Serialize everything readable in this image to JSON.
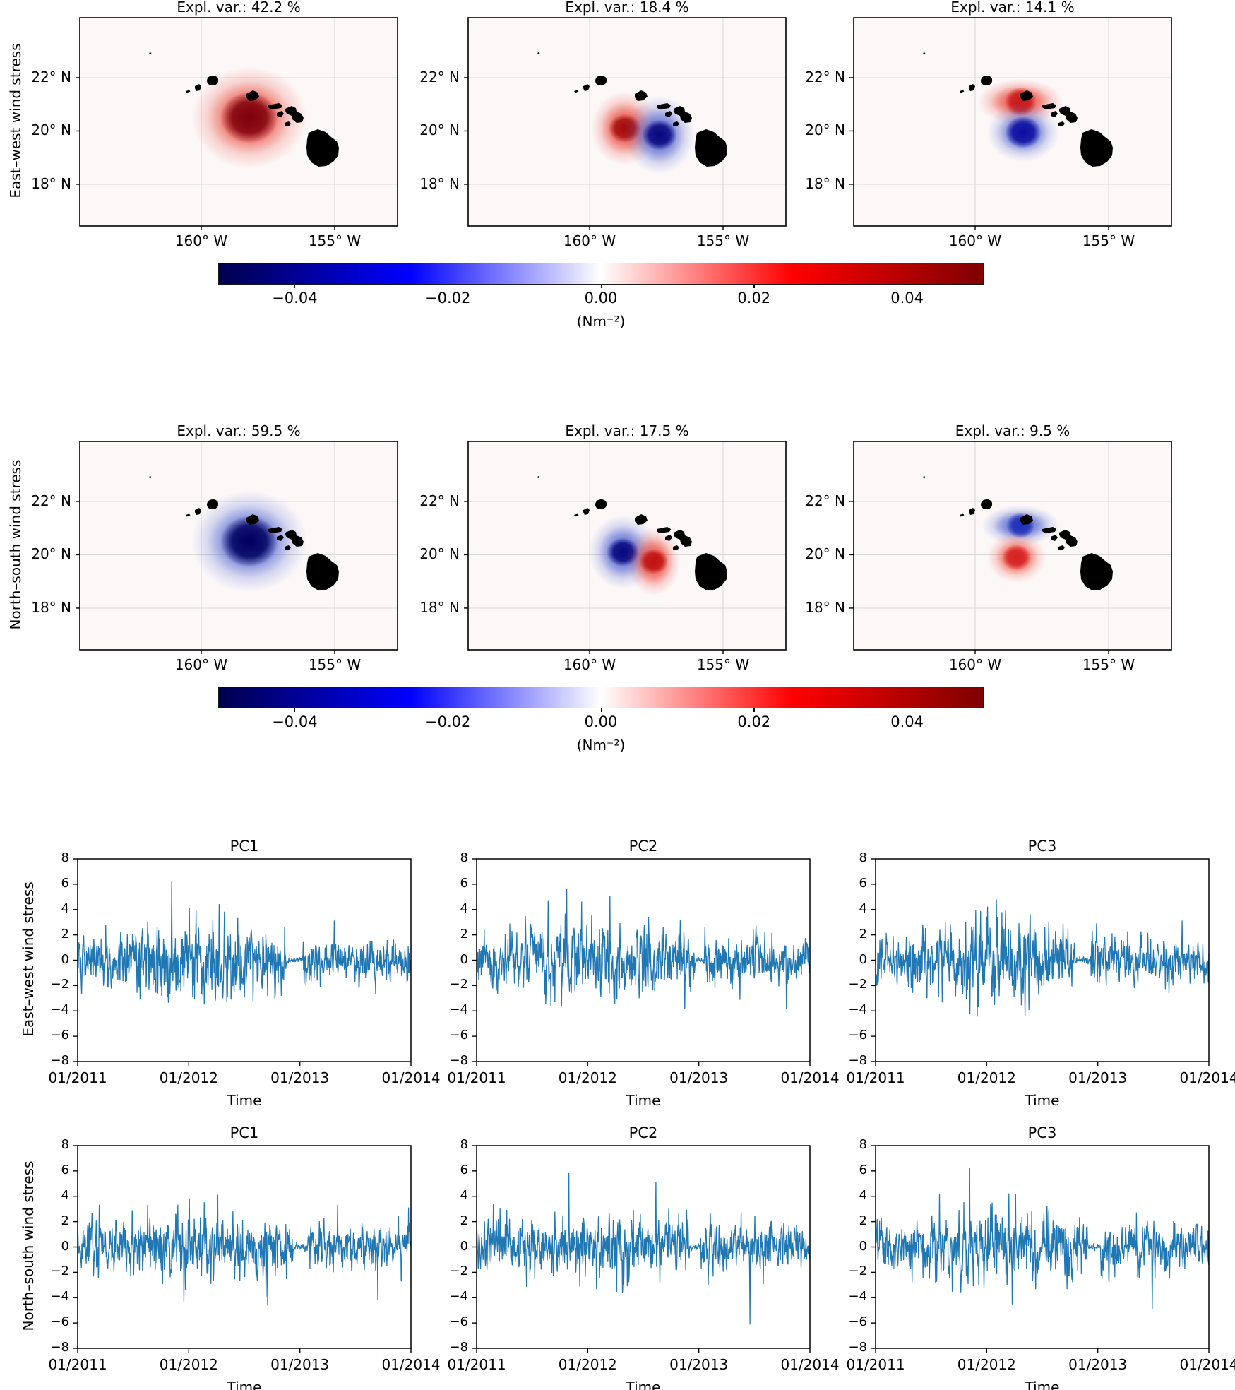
{
  "figure": {
    "row_sections": [
      {
        "label": "East–west wind stress"
      },
      {
        "label": "North–south wind stress"
      },
      {
        "label": "East–west wind stress"
      },
      {
        "label": "North–south wind stress"
      }
    ],
    "colorbar": {
      "tick_labels": [
        "−0.04",
        "−0.02",
        "0.00",
        "0.02",
        "0.04"
      ],
      "tick_values": [
        -0.04,
        -0.02,
        0.0,
        0.02,
        0.04
      ],
      "unit": "(Nm⁻²)",
      "cmap": "seismic",
      "vmin": -0.05,
      "vmax": 0.05,
      "gradient": [
        "#00004d",
        "#0000ff",
        "#ffffff",
        "#ff0000",
        "#800000"
      ]
    }
  },
  "chart_data": {
    "maps": {
      "type": "heatmap",
      "region": "Hawaiian Islands",
      "lon_range": [
        -164.55,
        -152.65
      ],
      "lat_range": [
        16.5,
        24.25
      ],
      "lon_ticks": [
        {
          "label": "160° W",
          "lon": -160
        },
        {
          "label": "155° W",
          "lon": -155
        }
      ],
      "lat_ticks": [
        {
          "label": "22° N",
          "lat": 22
        },
        {
          "label": "20° N",
          "lat": 20
        },
        {
          "label": "18° N",
          "lat": 18
        }
      ],
      "panels": [
        {
          "row_label": "East–west wind stress",
          "title": "Expl. var.: 42.2 %",
          "expl_var_pct": 42.2,
          "blobs": [
            {
              "sign": "positive",
              "lon": -158.2,
              "lat": 20.5,
              "rx_deg": 2.17,
              "ry_deg": 1.91,
              "core_deg": 0.8,
              "outer": "#e8392b",
              "core": "#7e000c"
            }
          ]
        },
        {
          "row_label": "East–west wind stress",
          "title": "Expl. var.: 18.4 %",
          "expl_var_pct": 18.4,
          "blobs": [
            {
              "sign": "positive",
              "lon": -158.68,
              "lat": 20.1,
              "rx_deg": 1.27,
              "ry_deg": 1.38,
              "core_deg": 0.45,
              "outer": "#e8392b",
              "core": "#a50d0d"
            },
            {
              "sign": "negative",
              "lon": -157.38,
              "lat": 19.85,
              "rx_deg": 1.32,
              "ry_deg": 1.46,
              "core_deg": 0.48,
              "outer": "#4055cc",
              "core": "#07077e"
            }
          ]
        },
        {
          "row_label": "East–west wind stress",
          "title": "Expl. var.: 14.1 %",
          "expl_var_pct": 14.1,
          "blobs": [
            {
              "sign": "positive",
              "lon": -158.3,
              "lat": 21.1,
              "rx_deg": 1.6,
              "ry_deg": 0.85,
              "core_deg": 0.45,
              "outer": "#e8392b",
              "core": "#c81a1a"
            },
            {
              "sign": "negative",
              "lon": -158.2,
              "lat": 19.95,
              "rx_deg": 1.35,
              "ry_deg": 1.1,
              "core_deg": 0.5,
              "outer": "#4055cc",
              "core": "#0d0da0"
            }
          ]
        },
        {
          "row_label": "North–south wind stress",
          "title": "Expl. var.: 59.5 %",
          "expl_var_pct": 59.5,
          "blobs": [
            {
              "sign": "negative",
              "lon": -158.2,
              "lat": 20.5,
              "rx_deg": 2.17,
              "ry_deg": 1.91,
              "core_deg": 0.8,
              "outer": "#4055cc",
              "core": "#00005e"
            }
          ]
        },
        {
          "row_label": "North–south wind stress",
          "title": "Expl. var.: 17.5 %",
          "expl_var_pct": 17.5,
          "blobs": [
            {
              "sign": "negative",
              "lon": -158.75,
              "lat": 20.1,
              "rx_deg": 1.27,
              "ry_deg": 1.38,
              "core_deg": 0.45,
              "outer": "#4055cc",
              "core": "#07077e"
            },
            {
              "sign": "positive",
              "lon": -157.6,
              "lat": 19.75,
              "rx_deg": 1.0,
              "ry_deg": 1.27,
              "core_deg": 0.4,
              "outer": "#e8392b",
              "core": "#c01212"
            }
          ]
        },
        {
          "row_label": "North–south wind stress",
          "title": "Expl. var.: 9.5 %",
          "expl_var_pct": 9.5,
          "blobs": [
            {
              "sign": "negative",
              "lon": -158.3,
              "lat": 21.1,
              "rx_deg": 1.45,
              "ry_deg": 0.75,
              "core_deg": 0.4,
              "outer": "#4055cc",
              "core": "#2030b8"
            },
            {
              "sign": "positive",
              "lon": -158.45,
              "lat": 19.9,
              "rx_deg": 1.1,
              "ry_deg": 0.95,
              "core_deg": 0.4,
              "outer": "#ee4433",
              "core": "#d42222"
            }
          ]
        }
      ]
    },
    "timeseries": {
      "type": "line",
      "line_color": "#1f77b4",
      "ylim": [
        -8,
        8
      ],
      "yticks": [
        -8,
        -6,
        -4,
        -2,
        0,
        2,
        4,
        6,
        8
      ],
      "xtick_labels": [
        "01/2011",
        "01/2012",
        "01/2013",
        "01/2014"
      ],
      "xlabel": "Time",
      "n_points": 1096,
      "panels": [
        {
          "row_label": "East–west wind stress",
          "title": "PC1",
          "seed": 101,
          "env": {
            "base": 0.62,
            "bump": 0.55,
            "center": 0.36,
            "width": 0.17
          },
          "quiet": [
            [
              0.625,
              0.675
            ]
          ],
          "spikes": [
            [
              0.282,
              6.2
            ],
            [
              0.335,
              4.1
            ],
            [
              0.425,
              4.4
            ],
            [
              0.355,
              3.9
            ],
            [
              0.44,
              3.8
            ],
            [
              0.21,
              3.0
            ],
            [
              0.48,
              3.3
            ],
            [
              0.77,
              3.1
            ],
            [
              0.345,
              -2.9
            ],
            [
              0.24,
              -2.6
            ],
            [
              0.5,
              -2.9
            ],
            [
              0.57,
              -2.8
            ]
          ]
        },
        {
          "row_label": "East–west wind stress",
          "title": "PC2",
          "seed": 202,
          "env": {
            "base": 0.6,
            "bump": 0.5,
            "center": 0.33,
            "width": 0.2
          },
          "quiet": [
            [
              0.655,
              0.685
            ]
          ],
          "spikes": [
            [
              0.215,
              4.7
            ],
            [
              0.27,
              5.6
            ],
            [
              0.315,
              4.6
            ],
            [
              0.4,
              5.05
            ],
            [
              0.345,
              3.5
            ],
            [
              0.43,
              2.9
            ],
            [
              0.56,
              2.6
            ],
            [
              0.685,
              2.6
            ],
            [
              0.83,
              2.4
            ],
            [
              0.205,
              -2.7
            ],
            [
              0.255,
              -3.6
            ],
            [
              0.415,
              -3.4
            ],
            [
              0.625,
              -3.8
            ],
            [
              0.93,
              -3.85
            ],
            [
              0.79,
              -3.1
            ]
          ]
        },
        {
          "row_label": "East–west wind stress",
          "title": "PC3",
          "seed": 303,
          "env": {
            "base": 0.62,
            "bump": 0.5,
            "center": 0.35,
            "width": 0.18
          },
          "quiet": [
            [
              0.6,
              0.645
            ]
          ],
          "spikes": [
            [
              0.336,
              4.2
            ],
            [
              0.3,
              3.9
            ],
            [
              0.315,
              3.85
            ],
            [
              0.27,
              3.0
            ],
            [
              0.43,
              2.9
            ],
            [
              0.52,
              3.0
            ],
            [
              0.92,
              3.1
            ],
            [
              0.283,
              -4.2
            ],
            [
              0.448,
              -4.4
            ],
            [
              0.2,
              -3.3
            ],
            [
              0.46,
              -3.9
            ],
            [
              0.35,
              -2.8
            ],
            [
              0.88,
              -2.6
            ]
          ]
        },
        {
          "row_label": "North–south wind stress",
          "title": "PC1",
          "seed": 404,
          "env": {
            "base": 0.62,
            "bump": 0.35,
            "center": 0.38,
            "width": 0.22
          },
          "quiet": [
            [
              0.645,
              0.69
            ]
          ],
          "spikes": [
            [
              0.42,
              4.1
            ],
            [
              0.335,
              3.8
            ],
            [
              0.3,
              3.3
            ],
            [
              0.065,
              3.3
            ],
            [
              0.21,
              3.3
            ],
            [
              0.38,
              3.5
            ],
            [
              0.78,
              3.3
            ],
            [
              0.57,
              -4.6
            ],
            [
              0.565,
              -3.9
            ],
            [
              0.4,
              -2.9
            ],
            [
              0.9,
              -4.2
            ],
            [
              0.255,
              -2.9
            ]
          ]
        },
        {
          "row_label": "North–south wind stress",
          "title": "PC2",
          "seed": 505,
          "env": {
            "base": 0.62,
            "bump": 0.3,
            "center": 0.35,
            "width": 0.25
          },
          "quiet": [
            [
              0.64,
              0.67
            ]
          ],
          "spikes": [
            [
              0.277,
              5.8
            ],
            [
              0.538,
              5.1
            ],
            [
              0.05,
              3.4
            ],
            [
              0.07,
              3.0
            ],
            [
              0.09,
              2.9
            ],
            [
              0.47,
              2.9
            ],
            [
              0.63,
              2.9
            ],
            [
              0.36,
              -3.3
            ],
            [
              0.31,
              -3.1
            ],
            [
              0.42,
              -3.5
            ],
            [
              0.82,
              -6.1
            ],
            [
              0.86,
              -2.9
            ],
            [
              0.55,
              -2.8
            ]
          ]
        },
        {
          "row_label": "North–south wind stress",
          "title": "PC3",
          "seed": 606,
          "env": {
            "base": 0.65,
            "bump": 0.4,
            "center": 0.35,
            "width": 0.2
          },
          "quiet": [
            [
              0.635,
              0.675
            ]
          ],
          "spikes": [
            [
              0.282,
              6.2
            ],
            [
              0.4,
              4.2
            ],
            [
              0.42,
              4.15
            ],
            [
              0.345,
              3.4
            ],
            [
              0.25,
              2.9
            ],
            [
              0.52,
              2.9
            ],
            [
              0.83,
              -4.9
            ],
            [
              0.41,
              -4.5
            ],
            [
              0.23,
              -3.5
            ],
            [
              0.31,
              -3.0
            ],
            [
              0.18,
              -2.8
            ],
            [
              0.48,
              -3.3
            ]
          ]
        }
      ]
    }
  }
}
